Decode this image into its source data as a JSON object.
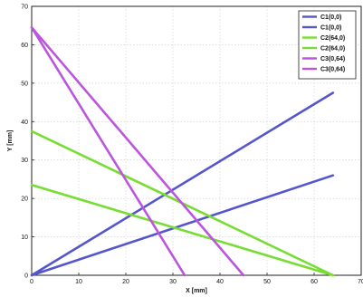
{
  "chart_data": {
    "type": "line",
    "title": "",
    "xlabel": "X [mm]",
    "ylabel": "Y [mm]",
    "xlim": [
      0,
      70
    ],
    "ylim": [
      0,
      70
    ],
    "x_ticks": [
      "0",
      "10",
      "20",
      "30",
      "40",
      "50",
      "60",
      "70"
    ],
    "y_ticks": [
      "0",
      "10",
      "20",
      "30",
      "40",
      "50",
      "60",
      "70"
    ],
    "grid": true,
    "legend_position": "top-right",
    "series": [
      {
        "name": "C1(0,0)",
        "color": "#5555cc",
        "points": [
          [
            0,
            0
          ],
          [
            64,
            47.5
          ]
        ]
      },
      {
        "name": "C1(0,0)",
        "color": "#5555cc",
        "points": [
          [
            0,
            0
          ],
          [
            64,
            26
          ]
        ]
      },
      {
        "name": "C2(64,0)",
        "color": "#77dd33",
        "points": [
          [
            64,
            0
          ],
          [
            0,
            37.5
          ]
        ]
      },
      {
        "name": "C2(64,0)",
        "color": "#77dd33",
        "points": [
          [
            64,
            0
          ],
          [
            0,
            23.5
          ]
        ]
      },
      {
        "name": "C3(0,64)",
        "color": "#bb55dd",
        "points": [
          [
            0,
            64.5
          ],
          [
            32.5,
            0
          ]
        ]
      },
      {
        "name": "C3(0,64)",
        "color": "#bb55dd",
        "points": [
          [
            0,
            64.5
          ],
          [
            45,
            0
          ]
        ]
      }
    ]
  }
}
